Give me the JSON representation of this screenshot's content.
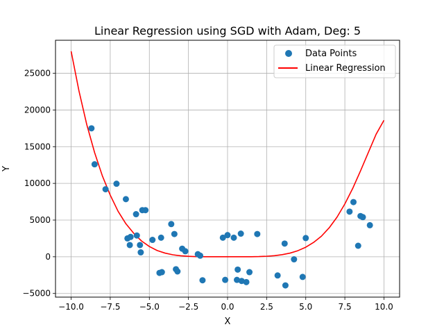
{
  "chart_data": {
    "type": "scatter",
    "title": "Linear Regression using SGD with Adam, Deg: 5",
    "xlabel": "X",
    "ylabel": "Y",
    "xlim": [
      -11.0,
      11.0
    ],
    "ylim": [
      -5500,
      29500
    ],
    "x_ticks": [
      -10.0,
      -7.5,
      -5.0,
      -2.5,
      0.0,
      2.5,
      5.0,
      7.5,
      10.0
    ],
    "x_tick_labels": [
      "−10.0",
      "−7.5",
      "−5.0",
      "−2.5",
      "0.0",
      "2.5",
      "5.0",
      "7.5",
      "10.0"
    ],
    "y_ticks": [
      -5000,
      0,
      5000,
      10000,
      15000,
      20000,
      25000
    ],
    "y_tick_labels": [
      "−5000",
      "0",
      "5000",
      "10000",
      "15000",
      "20000",
      "25000"
    ],
    "grid": true,
    "legend_position": "top-right",
    "series": [
      {
        "name": "Data Points",
        "kind": "scatter",
        "color": "#1f77b4",
        "points": [
          [
            -8.7,
            17500
          ],
          [
            -8.5,
            12600
          ],
          [
            -7.8,
            9200
          ],
          [
            -7.1,
            9950
          ],
          [
            -6.5,
            7850
          ],
          [
            -6.4,
            2500
          ],
          [
            -6.25,
            1600
          ],
          [
            -6.2,
            2700
          ],
          [
            -5.85,
            5800
          ],
          [
            -5.8,
            2900
          ],
          [
            -5.6,
            1600
          ],
          [
            -5.55,
            600
          ],
          [
            -5.45,
            6350
          ],
          [
            -5.25,
            6350
          ],
          [
            -4.8,
            2300
          ],
          [
            -4.35,
            -2200
          ],
          [
            -4.25,
            2600
          ],
          [
            -4.2,
            -2100
          ],
          [
            -3.6,
            4450
          ],
          [
            -3.4,
            3100
          ],
          [
            -3.3,
            -1700
          ],
          [
            -3.2,
            -2000
          ],
          [
            -2.9,
            1100
          ],
          [
            -2.7,
            750
          ],
          [
            -1.9,
            350
          ],
          [
            -1.75,
            150
          ],
          [
            -1.6,
            -3200
          ],
          [
            -0.3,
            2600
          ],
          [
            -0.15,
            -3150
          ],
          [
            0.0,
            2950
          ],
          [
            0.4,
            2600
          ],
          [
            0.6,
            -3150
          ],
          [
            0.65,
            -1750
          ],
          [
            0.85,
            3150
          ],
          [
            0.9,
            -3300
          ],
          [
            1.2,
            -3450
          ],
          [
            1.4,
            -2100
          ],
          [
            1.9,
            3100
          ],
          [
            3.2,
            -2550
          ],
          [
            3.65,
            1800
          ],
          [
            3.7,
            -3900
          ],
          [
            4.25,
            -350
          ],
          [
            4.8,
            -2750
          ],
          [
            5.0,
            2550
          ],
          [
            7.8,
            6150
          ],
          [
            8.05,
            7450
          ],
          [
            8.35,
            1500
          ],
          [
            8.5,
            5550
          ],
          [
            8.65,
            5400
          ],
          [
            9.1,
            4300
          ]
        ]
      },
      {
        "name": "Linear Regression",
        "kind": "line",
        "color": "#ff0000",
        "points": [
          [
            -10.0,
            28000
          ],
          [
            -9.5,
            22600
          ],
          [
            -9.0,
            18000
          ],
          [
            -8.5,
            14200
          ],
          [
            -8.0,
            11000
          ],
          [
            -7.5,
            8400
          ],
          [
            -7.0,
            6200
          ],
          [
            -6.5,
            4500
          ],
          [
            -6.0,
            3200
          ],
          [
            -5.5,
            2150
          ],
          [
            -5.0,
            1400
          ],
          [
            -4.5,
            850
          ],
          [
            -4.0,
            500
          ],
          [
            -3.5,
            270
          ],
          [
            -3.0,
            130
          ],
          [
            -2.5,
            60
          ],
          [
            -2.0,
            20
          ],
          [
            -1.5,
            5
          ],
          [
            -1.0,
            0
          ],
          [
            0.0,
            0
          ],
          [
            1.0,
            0
          ],
          [
            1.5,
            5
          ],
          [
            2.0,
            25
          ],
          [
            2.5,
            70
          ],
          [
            3.0,
            150
          ],
          [
            3.5,
            290
          ],
          [
            4.0,
            500
          ],
          [
            4.5,
            830
          ],
          [
            5.0,
            1300
          ],
          [
            5.5,
            1950
          ],
          [
            6.0,
            2800
          ],
          [
            6.5,
            3950
          ],
          [
            7.0,
            5400
          ],
          [
            7.5,
            7200
          ],
          [
            8.0,
            9300
          ],
          [
            8.5,
            11700
          ],
          [
            9.0,
            14200
          ],
          [
            9.5,
            16700
          ],
          [
            10.0,
            18600
          ]
        ]
      }
    ]
  }
}
